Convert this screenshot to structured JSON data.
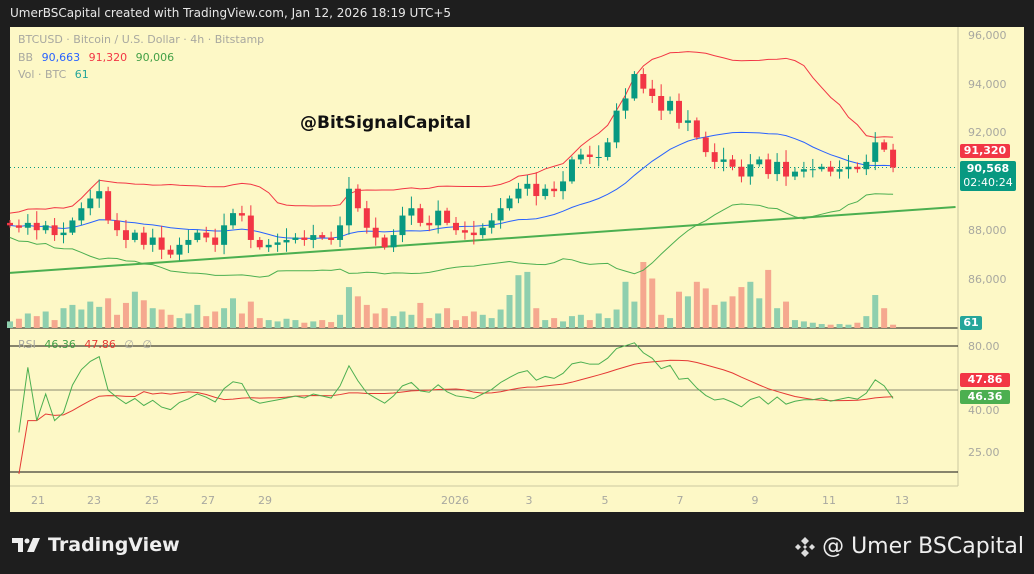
{
  "header": {
    "caption": "UmerBSCapital created with TradingView.com, Jan 12, 2026 18:19 UTC+5"
  },
  "legend": {
    "symbol": "BTCUSD · Bitcoin / U.S. Dollar · 4h · Bitstamp",
    "bb_label": "BB",
    "bb_basis": "90,663",
    "bb_upper": "91,320",
    "bb_lower": "90,006",
    "vol_label": "Vol · BTC",
    "vol_value": "61",
    "rsi_label": "RSI",
    "rsi_value": "46.36",
    "rsi_ma": "47.86",
    "rsi_na1": "∅",
    "rsi_na2": "∅"
  },
  "watermark": "@BitSignalCapital",
  "price_axis": {
    "labels": [
      "96,000",
      "94,000",
      "92,000",
      "88,000",
      "86,000"
    ]
  },
  "tags": {
    "bb_upper": "91,320",
    "last_price": "90,568",
    "countdown": "02:40:24",
    "volume": "61",
    "rsi_ma": "47.86",
    "rsi": "46.36"
  },
  "rsi_axis": {
    "labels": [
      "80.00",
      "40.00",
      "25.00"
    ]
  },
  "time_axis": [
    "21",
    "23",
    "25",
    "27",
    "29",
    "2026",
    "3",
    "5",
    "7",
    "9",
    "11",
    "13"
  ],
  "footer": {
    "brand": "TradingView",
    "signature": "@ Umer BSCapital"
  },
  "colors": {
    "up": "#089981",
    "down": "#f23645",
    "bb_basis": "#2962ff",
    "bb_upper": "#f23645",
    "bb_lower": "#4caf50",
    "rsi": "#4caf50",
    "rsi_ma": "#e53935",
    "trend": "#4caf50"
  },
  "chart_data": {
    "type": "candlestick",
    "title": "BTCUSD · 4h",
    "ylim": [
      85400,
      96600
    ],
    "closes": [
      88200,
      88100,
      88300,
      88000,
      88200,
      87800,
      87900,
      88400,
      88900,
      89300,
      89600,
      88400,
      88000,
      87600,
      87900,
      87400,
      87700,
      87200,
      87000,
      87400,
      87600,
      87900,
      87700,
      87400,
      88200,
      88700,
      88600,
      87600,
      87300,
      87400,
      87500,
      87600,
      87700,
      87600,
      87800,
      87700,
      87600,
      88200,
      89700,
      88900,
      88100,
      87700,
      87300,
      87800,
      88600,
      88900,
      88300,
      88200,
      88800,
      88300,
      88000,
      87900,
      87800,
      88100,
      88400,
      88900,
      89300,
      89700,
      89900,
      89400,
      89700,
      89600,
      90000,
      90900,
      91100,
      91000,
      91000,
      91600,
      92900,
      93400,
      94400,
      93800,
      93500,
      92900,
      93300,
      92400,
      92500,
      91800,
      91200,
      90800,
      90900,
      90600,
      90200,
      90700,
      90900,
      90300,
      90800,
      90200,
      90400,
      90500,
      90500,
      90600,
      90400,
      90500,
      90600,
      90500,
      90800,
      91600,
      91300,
      90568
    ],
    "volumes": [
      10,
      14,
      22,
      18,
      25,
      12,
      30,
      35,
      28,
      40,
      32,
      45,
      20,
      38,
      55,
      42,
      30,
      28,
      20,
      15,
      22,
      35,
      18,
      25,
      30,
      45,
      22,
      40,
      15,
      12,
      10,
      14,
      12,
      8,
      10,
      12,
      9,
      20,
      62,
      48,
      35,
      22,
      30,
      18,
      25,
      20,
      38,
      15,
      22,
      30,
      12,
      18,
      25,
      20,
      15,
      28,
      50,
      80,
      85,
      30,
      12,
      15,
      10,
      18,
      20,
      12,
      22,
      15,
      28,
      70,
      40,
      100,
      75,
      20,
      15,
      55,
      48,
      70,
      60,
      35,
      40,
      48,
      62,
      70,
      45,
      88,
      30,
      40,
      12,
      10,
      8,
      6,
      5,
      6,
      5,
      8,
      18,
      50,
      30,
      5
    ],
    "trendline": {
      "from": [
        0,
        86250
      ],
      "to": [
        106,
        88950
      ]
    },
    "bb": {
      "period": 20,
      "stddev": 2
    },
    "rsi": {
      "period": 14,
      "ylim": [
        20,
        85
      ],
      "levels": [
        80,
        50
      ]
    }
  }
}
